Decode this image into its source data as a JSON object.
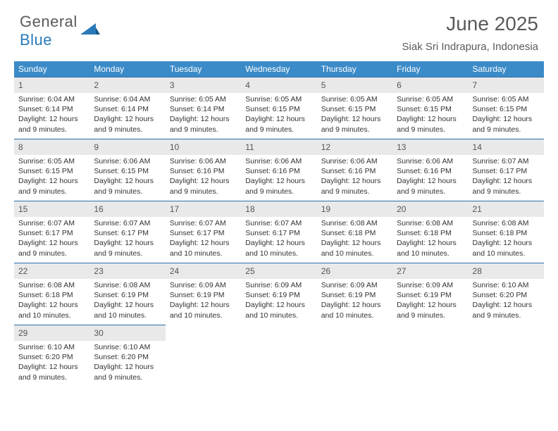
{
  "logo": {
    "text1": "General",
    "text2": "Blue"
  },
  "title": "June 2025",
  "location": "Siak Sri Indrapura, Indonesia",
  "colors": {
    "header_bg": "#3b8bc8",
    "header_text": "#ffffff",
    "border": "#2a6fa8",
    "daynum_bg": "#e9e9e9",
    "text": "#333333",
    "logo_gray": "#5a5a5a",
    "logo_blue": "#2a7ab8"
  },
  "daynames": [
    "Sunday",
    "Monday",
    "Tuesday",
    "Wednesday",
    "Thursday",
    "Friday",
    "Saturday"
  ],
  "days": [
    {
      "n": "1",
      "sr": "6:04 AM",
      "ss": "6:14 PM",
      "dl": "12 hours and 9 minutes."
    },
    {
      "n": "2",
      "sr": "6:04 AM",
      "ss": "6:14 PM",
      "dl": "12 hours and 9 minutes."
    },
    {
      "n": "3",
      "sr": "6:05 AM",
      "ss": "6:14 PM",
      "dl": "12 hours and 9 minutes."
    },
    {
      "n": "4",
      "sr": "6:05 AM",
      "ss": "6:15 PM",
      "dl": "12 hours and 9 minutes."
    },
    {
      "n": "5",
      "sr": "6:05 AM",
      "ss": "6:15 PM",
      "dl": "12 hours and 9 minutes."
    },
    {
      "n": "6",
      "sr": "6:05 AM",
      "ss": "6:15 PM",
      "dl": "12 hours and 9 minutes."
    },
    {
      "n": "7",
      "sr": "6:05 AM",
      "ss": "6:15 PM",
      "dl": "12 hours and 9 minutes."
    },
    {
      "n": "8",
      "sr": "6:05 AM",
      "ss": "6:15 PM",
      "dl": "12 hours and 9 minutes."
    },
    {
      "n": "9",
      "sr": "6:06 AM",
      "ss": "6:15 PM",
      "dl": "12 hours and 9 minutes."
    },
    {
      "n": "10",
      "sr": "6:06 AM",
      "ss": "6:16 PM",
      "dl": "12 hours and 9 minutes."
    },
    {
      "n": "11",
      "sr": "6:06 AM",
      "ss": "6:16 PM",
      "dl": "12 hours and 9 minutes."
    },
    {
      "n": "12",
      "sr": "6:06 AM",
      "ss": "6:16 PM",
      "dl": "12 hours and 9 minutes."
    },
    {
      "n": "13",
      "sr": "6:06 AM",
      "ss": "6:16 PM",
      "dl": "12 hours and 9 minutes."
    },
    {
      "n": "14",
      "sr": "6:07 AM",
      "ss": "6:17 PM",
      "dl": "12 hours and 9 minutes."
    },
    {
      "n": "15",
      "sr": "6:07 AM",
      "ss": "6:17 PM",
      "dl": "12 hours and 9 minutes."
    },
    {
      "n": "16",
      "sr": "6:07 AM",
      "ss": "6:17 PM",
      "dl": "12 hours and 9 minutes."
    },
    {
      "n": "17",
      "sr": "6:07 AM",
      "ss": "6:17 PM",
      "dl": "12 hours and 10 minutes."
    },
    {
      "n": "18",
      "sr": "6:07 AM",
      "ss": "6:17 PM",
      "dl": "12 hours and 10 minutes."
    },
    {
      "n": "19",
      "sr": "6:08 AM",
      "ss": "6:18 PM",
      "dl": "12 hours and 10 minutes."
    },
    {
      "n": "20",
      "sr": "6:08 AM",
      "ss": "6:18 PM",
      "dl": "12 hours and 10 minutes."
    },
    {
      "n": "21",
      "sr": "6:08 AM",
      "ss": "6:18 PM",
      "dl": "12 hours and 10 minutes."
    },
    {
      "n": "22",
      "sr": "6:08 AM",
      "ss": "6:18 PM",
      "dl": "12 hours and 10 minutes."
    },
    {
      "n": "23",
      "sr": "6:08 AM",
      "ss": "6:19 PM",
      "dl": "12 hours and 10 minutes."
    },
    {
      "n": "24",
      "sr": "6:09 AM",
      "ss": "6:19 PM",
      "dl": "12 hours and 10 minutes."
    },
    {
      "n": "25",
      "sr": "6:09 AM",
      "ss": "6:19 PM",
      "dl": "12 hours and 10 minutes."
    },
    {
      "n": "26",
      "sr": "6:09 AM",
      "ss": "6:19 PM",
      "dl": "12 hours and 10 minutes."
    },
    {
      "n": "27",
      "sr": "6:09 AM",
      "ss": "6:19 PM",
      "dl": "12 hours and 9 minutes."
    },
    {
      "n": "28",
      "sr": "6:10 AM",
      "ss": "6:20 PM",
      "dl": "12 hours and 9 minutes."
    },
    {
      "n": "29",
      "sr": "6:10 AM",
      "ss": "6:20 PM",
      "dl": "12 hours and 9 minutes."
    },
    {
      "n": "30",
      "sr": "6:10 AM",
      "ss": "6:20 PM",
      "dl": "12 hours and 9 minutes."
    }
  ],
  "labels": {
    "sunrise": "Sunrise:",
    "sunset": "Sunset:",
    "daylight": "Daylight:"
  }
}
